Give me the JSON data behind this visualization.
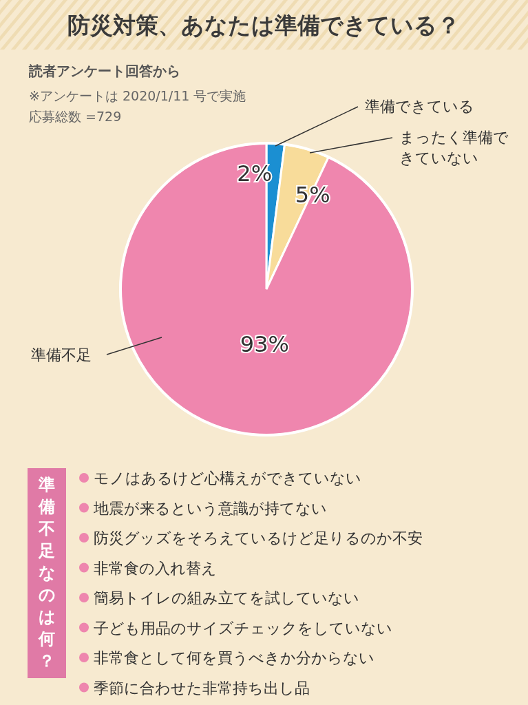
{
  "chart_data": {
    "type": "pie",
    "title": "防災対策、あなたは準備できている？",
    "subtitle": "読者アンケート回答から",
    "categories": [
      "準備できている",
      "まったく準備できていない",
      "準備不足"
    ],
    "values": [
      2,
      5,
      93
    ],
    "colors": [
      "#1b8fd2",
      "#f8dc9a",
      "#ef86ae"
    ],
    "value_labels": [
      "2%",
      "5%",
      "93%"
    ],
    "annotations": [
      "※アンケートは 2020/1/11 号で実施",
      "応募総数 =729",
      "準備不足なのは何？",
      "モノはあるけど心構えができていない",
      "地震が来るという意識が持てない",
      "防災グッズをそろえているけど足りるのか不安",
      "非常食の入れ替え",
      "簡易トイレの組み立てを試していない",
      "子ども用品のサイズチェックをしていない",
      "非常食として何を買うべきか分からない",
      "季節に合わせた非常持ち出し品"
    ]
  }
}
